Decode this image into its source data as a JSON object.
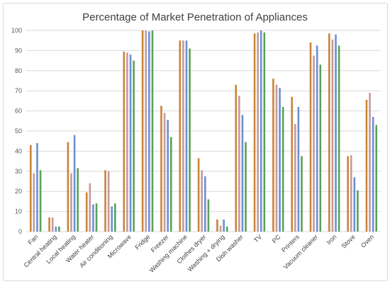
{
  "chart_data": {
    "type": "bar",
    "title": "Percentage of Market Penetration of Appliances",
    "xlabel": "",
    "ylabel": "",
    "ylim": [
      0,
      100
    ],
    "yticks": [
      0,
      10,
      20,
      30,
      40,
      50,
      60,
      70,
      80,
      90,
      100
    ],
    "grid": true,
    "legend": "none",
    "categories": [
      "Fan",
      "Central heating",
      "Local heating",
      "Water heater",
      "Air conditioning",
      "Microwave",
      "Fridge",
      "Freezer",
      "Washing machine",
      "Clothes dryer",
      "Washing + drying",
      "Dish washer",
      "TV",
      "PC",
      "Printers",
      "Vacuum cleaner",
      "Iron",
      "Stove",
      "Oven"
    ],
    "series": [
      {
        "color": "#c9843a",
        "values": [
          43,
          7,
          44.5,
          19.5,
          30.5,
          89.5,
          100,
          62.5,
          95,
          36.5,
          6,
          73,
          98.5,
          76,
          67,
          94,
          98.5,
          37.5,
          65.5
        ]
      },
      {
        "color": "#c49a9a",
        "values": [
          29,
          7,
          29,
          24,
          30,
          89,
          100,
          59,
          95,
          30.5,
          3,
          67.5,
          99,
          73,
          53.5,
          87.5,
          95.5,
          38,
          69
        ]
      },
      {
        "color": "#6b8fd4",
        "values": [
          44,
          2.5,
          48,
          13.5,
          12.5,
          88,
          99.5,
          55.5,
          95,
          27.5,
          6,
          58,
          100,
          71.5,
          62,
          92.5,
          98,
          27,
          57
        ]
      },
      {
        "color": "#5aa15a",
        "values": [
          30.5,
          2.5,
          31.5,
          14,
          14,
          85,
          100,
          47,
          91,
          16,
          2.5,
          44.5,
          99,
          62,
          37.5,
          83,
          92.5,
          20.5,
          53
        ]
      }
    ]
  }
}
